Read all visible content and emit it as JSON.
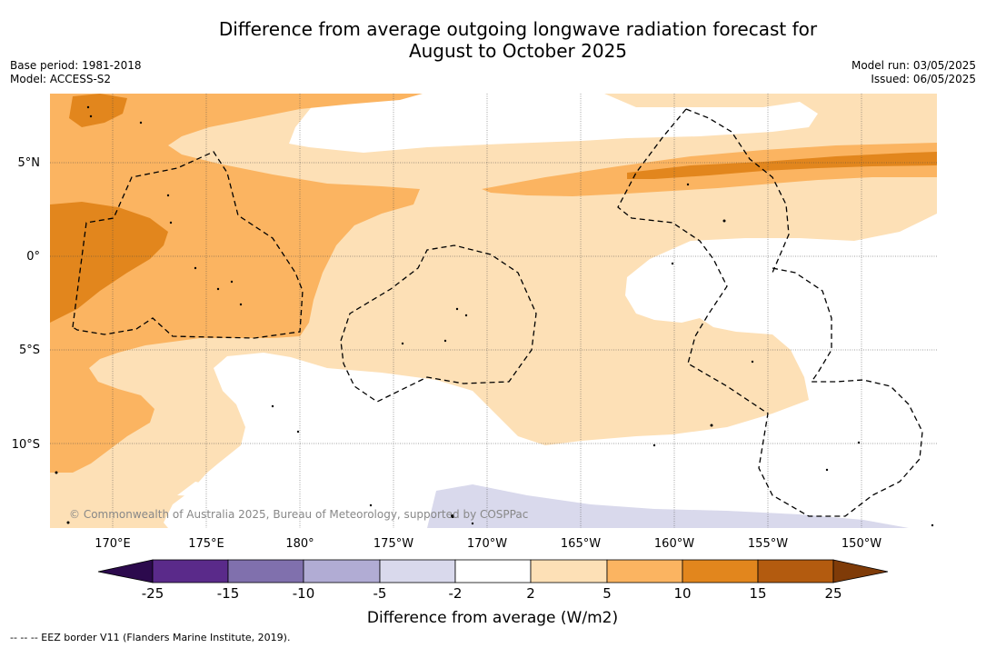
{
  "title_line1": "Difference from average outgoing longwave radiation forecast for",
  "title_line2": "August to October 2025",
  "base_period": "Base period: 1981-2018",
  "model": "Model: ACCESS-S2",
  "model_run": "Model run: 03/05/2025",
  "issued": "Issued: 06/05/2025",
  "copyright": "© Commonwealth of Australia 2025, Bureau of Meteorology, supported by COSPPac",
  "lat_labels": [
    "5°N",
    "0°",
    "5°S",
    "10°S"
  ],
  "lon_labels": [
    "170°E",
    "175°E",
    "180°",
    "175°W",
    "170°W",
    "165°W",
    "160°W",
    "155°W",
    "150°W"
  ],
  "colorbar": {
    "ticks": [
      "-25",
      "-15",
      "-10",
      "-5",
      "-2",
      "2",
      "5",
      "10",
      "15",
      "25"
    ],
    "label": "Difference from average (W/m2)",
    "colors": {
      "below_min": "#2c0a4d",
      "bins": [
        "#5a2a8a",
        "#8070ad",
        "#b1acd4",
        "#d9d9ec",
        "#ffffff",
        "#fde0b6",
        "#fbb461",
        "#e2861d",
        "#b35b0f"
      ],
      "above_max": "#7f3b08"
    }
  },
  "footer": "--  --  -- EEZ border V11 (Flanders Marine Institute, 2019)."
}
